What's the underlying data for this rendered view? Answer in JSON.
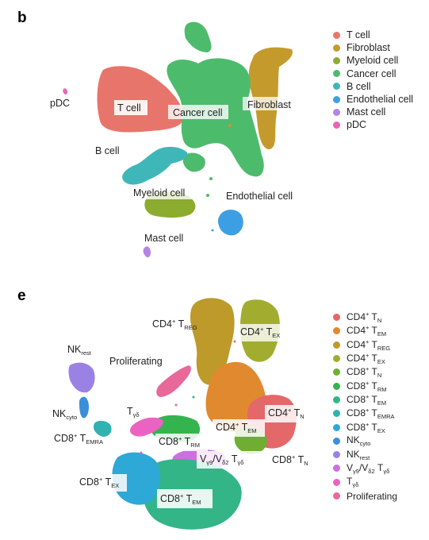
{
  "panel_b": {
    "letter": "b",
    "legend": [
      {
        "label": "T cell",
        "color": "#e8756b"
      },
      {
        "label": "Fibroblast",
        "color": "#c59a2c"
      },
      {
        "label": "Myeloid cell",
        "color": "#8bac2e"
      },
      {
        "label": "Cancer cell",
        "color": "#4dbb6c"
      },
      {
        "label": "B cell",
        "color": "#3fb7b9"
      },
      {
        "label": "Endothelial cell",
        "color": "#3d9fe3"
      },
      {
        "label": "Mast cell",
        "color": "#b583e6"
      },
      {
        "label": "pDC",
        "color": "#e865b6"
      }
    ],
    "labels": {
      "t_cell": "T cell",
      "fibroblast": "Fibroblast",
      "cancer_cell": "Cancer cell",
      "pdc": "pDC",
      "b_cell": "B cell",
      "myeloid_cell": "Myeloid cell",
      "endothelial_cell": "Endothelial cell",
      "mast_cell": "Mast cell"
    }
  },
  "panel_e": {
    "letter": "e",
    "legend": [
      {
        "main": "CD4",
        "sup": "+",
        "mid": " T",
        "sub": "N",
        "color": "#e4676a"
      },
      {
        "main": "CD4",
        "sup": "+",
        "mid": " T",
        "sub": "EM",
        "color": "#e1892e"
      },
      {
        "main": "CD4",
        "sup": "+",
        "mid": " T",
        "sub": "REG",
        "color": "#bd9a2a"
      },
      {
        "main": "CD4",
        "sup": "+",
        "mid": " T",
        "sub": "EX",
        "color": "#a2ad2f"
      },
      {
        "main": "CD8",
        "sup": "+",
        "mid": " T",
        "sub": "N",
        "color": "#6fae33"
      },
      {
        "main": "CD8",
        "sup": "+",
        "mid": " T",
        "sub": "RM",
        "color": "#35b34f"
      },
      {
        "main": "CD8",
        "sup": "+",
        "mid": " T",
        "sub": "EM",
        "color": "#33b587"
      },
      {
        "main": "CD8",
        "sup": "+",
        "mid": " T",
        "sub": "EMRA",
        "color": "#2fb2b0"
      },
      {
        "main": "CD8",
        "sup": "+",
        "mid": " T",
        "sub": "EX",
        "color": "#2ea8d6"
      },
      {
        "main": "NK",
        "sup": "",
        "mid": "",
        "sub": "cyto",
        "color": "#3a8fd9"
      },
      {
        "main": "NK",
        "sup": "",
        "mid": "",
        "sub": "rest",
        "color": "#9a82e4"
      },
      {
        "main": "V",
        "sup": "",
        "mid": "",
        "sub": "γ9",
        "tail": "/V",
        "tail_sub": "δ2",
        "tail2": " T",
        "tail2_sub": "γδ",
        "color": "#cc6fe1"
      },
      {
        "main": "T",
        "sup": "",
        "mid": "",
        "sub": "γδ",
        "color": "#ea63c3"
      },
      {
        "main": "Proliferating",
        "sup": "",
        "mid": "",
        "sub": "",
        "color": "#e8689a"
      }
    ],
    "labels": {
      "cd4_treg": {
        "main": "CD4",
        "sup": "+",
        "t": " T",
        "sub": "REG"
      },
      "cd4_tex": {
        "main": "CD4",
        "sup": "+",
        "t": " T",
        "sub": "EX"
      },
      "nk_rest": {
        "main": "NK",
        "sub": "rest"
      },
      "proliferating": "Proliferating",
      "nk_cyto": {
        "main": "NK",
        "sub": "cyto"
      },
      "tgd": {
        "main": "T",
        "sub": "γδ"
      },
      "cd8_temra": {
        "main": "CD8",
        "sup": "+",
        "t": " T",
        "sub": "EMRA"
      },
      "cd4_tn": {
        "main": "CD4",
        "sup": "+",
        "t": " T",
        "sub": "N"
      },
      "cd4_tem": {
        "main": "CD4",
        "sup": "+",
        "t": " T",
        "sub": "EM"
      },
      "cd8_trm": {
        "main": "CD8",
        "sup": "+",
        "t": " T",
        "sub": "RM"
      },
      "vg9vd2": {
        "a": "V",
        "a_sub": "γ9",
        "b": "/V",
        "b_sub": "δ2",
        "c": " T",
        "c_sub": "γδ"
      },
      "cd8_tn": {
        "main": "CD8",
        "sup": "+",
        "t": " T",
        "sub": "N"
      },
      "cd8_tex": {
        "main": "CD8",
        "sup": "+",
        "t": " T",
        "sub": "EX"
      },
      "cd8_tem": {
        "main": "CD8",
        "sup": "+",
        "t": " T",
        "sub": "EM"
      }
    }
  }
}
